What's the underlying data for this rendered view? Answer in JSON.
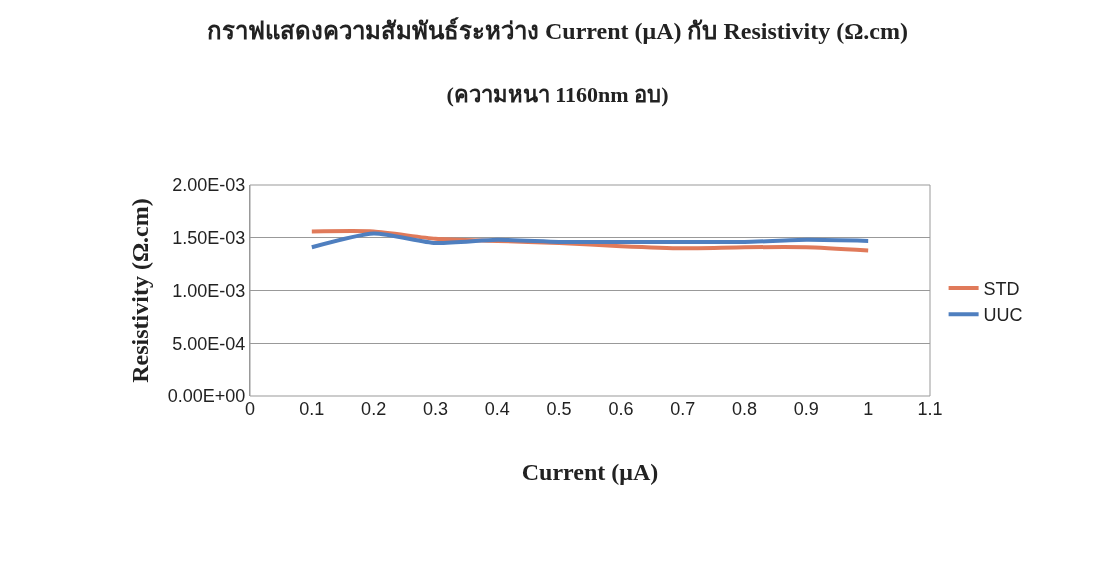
{
  "chart_data": {
    "type": "line",
    "title": "กราฟแสดงความสัมพันธ์ระหว่าง Current (μA) กับ Resistivity (Ω.cm)",
    "subtitle": "(ความหนา 1160nm อบ)",
    "xlabel": "Current (μA)",
    "ylabel": "Resistivity (Ω.cm)",
    "x": [
      0.1,
      0.2,
      0.3,
      0.4,
      0.5,
      0.6,
      0.7,
      0.8,
      0.9,
      1
    ],
    "series": [
      {
        "name": "STD",
        "color": "#e07a5a",
        "values": [
          0.00156,
          0.00156,
          0.00149,
          0.00147,
          0.00145,
          0.00142,
          0.0014,
          0.00141,
          0.00141,
          0.00138
        ]
      },
      {
        "name": "UUC",
        "color": "#4f7fbf",
        "values": [
          0.00141,
          0.00154,
          0.00145,
          0.00148,
          0.00146,
          0.00146,
          0.00146,
          0.00146,
          0.00148,
          0.00147
        ]
      }
    ],
    "xlim": [
      0,
      1.1
    ],
    "xticks": [
      0,
      0.1,
      0.2,
      0.3,
      0.4,
      0.5,
      0.6,
      0.7,
      0.8,
      0.9,
      1,
      1.1
    ],
    "ylim": [
      0,
      0.002
    ],
    "yticks": [
      {
        "value": 0,
        "label": "0.00E+00"
      },
      {
        "value": 0.0005,
        "label": "5.00E-04"
      },
      {
        "value": 0.001,
        "label": "1.00E-03"
      },
      {
        "value": 0.0015,
        "label": "1.50E-03"
      },
      {
        "value": 0.002,
        "label": "2.00E-03"
      }
    ],
    "grid": "y",
    "legend": "right",
    "marker": "none",
    "line_style": "solid"
  }
}
